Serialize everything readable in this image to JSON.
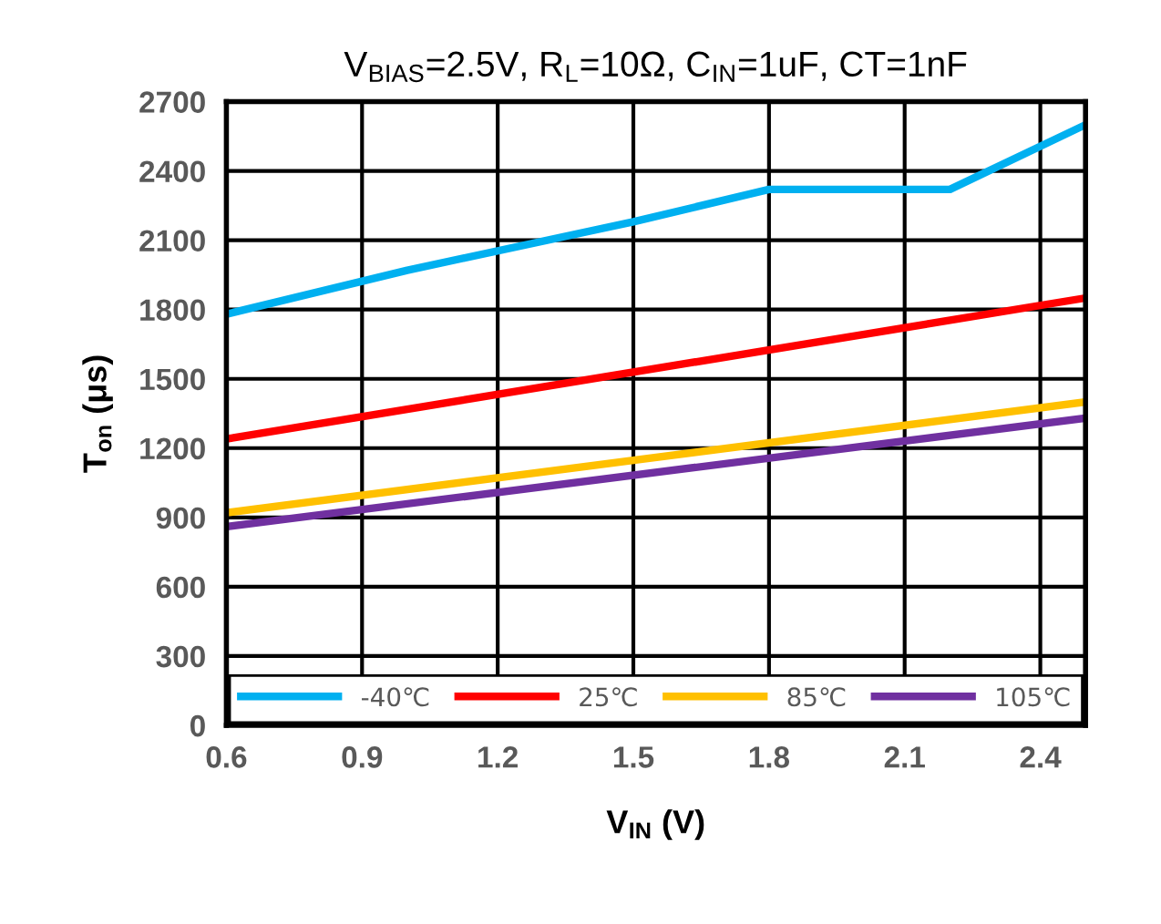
{
  "chart_data": {
    "type": "line",
    "title": "V$_{BIAS}$=2.5V, R$_{L}$=10Ω, C$_{IN}$=1uF, CT=1nF",
    "xlabel": "V$_{IN}$ (V)",
    "ylabel": "T$_{on}$ (μs)",
    "xlim": [
      0.6,
      2.5
    ],
    "xticks": [
      0.6,
      0.9,
      1.2,
      1.5,
      1.8,
      2.1,
      2.4
    ],
    "ylim": [
      0,
      2700
    ],
    "yticks": [
      0,
      300,
      600,
      900,
      1200,
      1500,
      1800,
      2100,
      2400,
      2700
    ],
    "grid": true,
    "legend": "bottom",
    "marker": "none",
    "line_style": "solid",
    "series": [
      {
        "name": "-40℃",
        "color": "#00b0f0",
        "x": [
          0.6,
          1.0,
          1.5,
          1.8,
          2.2,
          2.5
        ],
        "values": [
          1780,
          1970,
          2180,
          2320,
          2320,
          2600
        ]
      },
      {
        "name": "25℃",
        "color": "#ff0000",
        "x": [
          0.6,
          2.5
        ],
        "values": [
          1240,
          1850
        ]
      },
      {
        "name": "85℃",
        "color": "#ffc000",
        "x": [
          0.6,
          2.5
        ],
        "values": [
          920,
          1400
        ]
      },
      {
        "name": "105℃",
        "color": "#7030a0",
        "x": [
          0.6,
          2.5
        ],
        "values": [
          860,
          1330
        ]
      }
    ]
  }
}
